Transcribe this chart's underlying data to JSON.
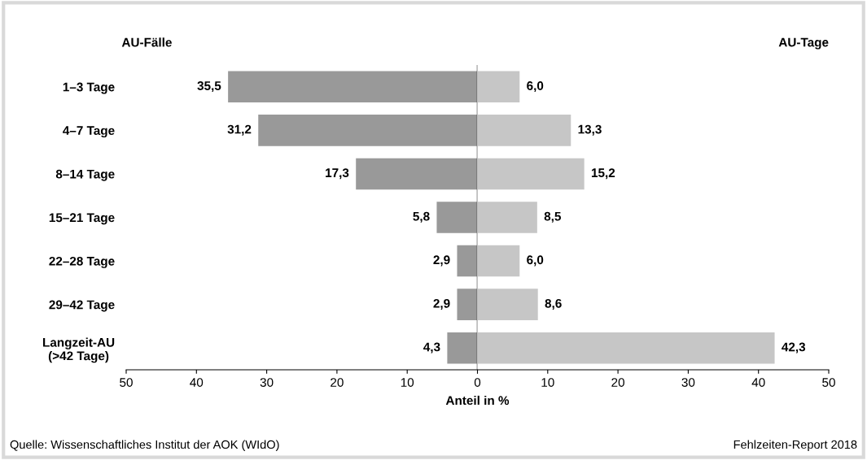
{
  "chart_data": [
    {
      "type": "bar",
      "orientation": "horizontal",
      "title": "AU-Fälle",
      "xlabel": "Anteil in %",
      "categories": [
        "1–3 Tage",
        "4–7 Tage",
        "8–14 Tage",
        "15–21 Tage",
        "22–28 Tage",
        "29–42 Tage",
        "Langzeit-AU\n(>42 Tage)"
      ],
      "series": [
        {
          "color": "#999999",
          "values": [
            35.5,
            31.2,
            17.3,
            5.8,
            2.9,
            2.9,
            4.3
          ],
          "value_labels": [
            "35,5",
            "31,2",
            "17,3",
            "5,8",
            "2,9",
            "2,9",
            "4,3"
          ]
        }
      ],
      "xlim": [
        50,
        0
      ],
      "xticks": [
        50,
        40,
        30,
        20,
        10
      ],
      "ref_lines": [
        {
          "axis": "x",
          "value": 0,
          "color": "#000000"
        }
      ],
      "annotations": [
        "Quelle: Wissenschaftliches Institut der AOK (WIdO)"
      ]
    },
    {
      "type": "bar",
      "orientation": "horizontal",
      "title": "AU-Tage",
      "tick_labels": "x",
      "categories": [
        null,
        null,
        null,
        null,
        null,
        null,
        null
      ],
      "series": [
        {
          "color": "#c6c6c6",
          "values": [
            6.0,
            13.3,
            15.2,
            8.5,
            6.0,
            8.6,
            42.3
          ],
          "value_labels": [
            "6,0",
            "13,3",
            "15,2",
            "8,5",
            "6,0",
            "8,6",
            "42,3"
          ]
        }
      ],
      "xlim": [
        0,
        50
      ],
      "xticks": [
        0,
        10,
        20,
        30,
        40,
        50
      ],
      "annotations": [
        "Fehlzeiten-Report 2018"
      ]
    }
  ]
}
